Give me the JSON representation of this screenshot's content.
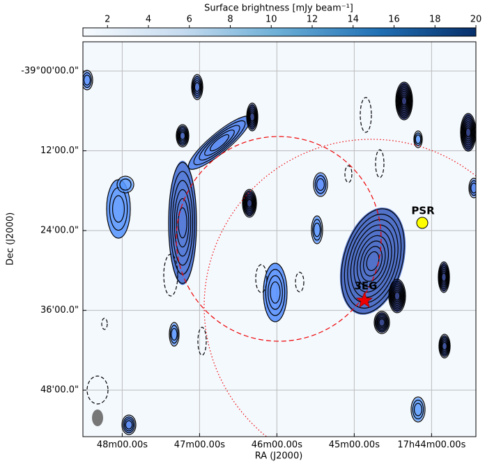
{
  "chart_data": {
    "type": "image",
    "xlabel": "RA (J2000)",
    "ylabel": "Dec (J2000)",
    "xlim": [
      270.5,
      -34.4
    ],
    "ylim": [
      -55,
      4.4
    ],
    "xticks": [
      {
        "value": 240,
        "label": "48m00.00s"
      },
      {
        "value": 180,
        "label": "47m00.00s"
      },
      {
        "value": 120,
        "label": "46m00.00s"
      },
      {
        "value": 60,
        "label": "45m00.00s"
      },
      {
        "value": 0,
        "label": "17h44m00.00s"
      }
    ],
    "yticks": [
      {
        "value": 0,
        "label": "-39°00'00.0\""
      },
      {
        "value": -12,
        "label": "12'00.0\""
      },
      {
        "value": -24,
        "label": "24'00.0\""
      },
      {
        "value": -36,
        "label": "36'00.0\""
      },
      {
        "value": -48,
        "label": "48'00.0\""
      }
    ],
    "grid": true,
    "colorbar": {
      "label": "Surface brightness [mJy beam⁻¹]",
      "lim": [
        0.8,
        20
      ],
      "ticks": [
        2,
        4,
        6,
        8,
        10,
        12,
        14,
        16,
        18,
        20
      ]
    },
    "annotations": [
      "PSR",
      "3EG"
    ]
  }
}
